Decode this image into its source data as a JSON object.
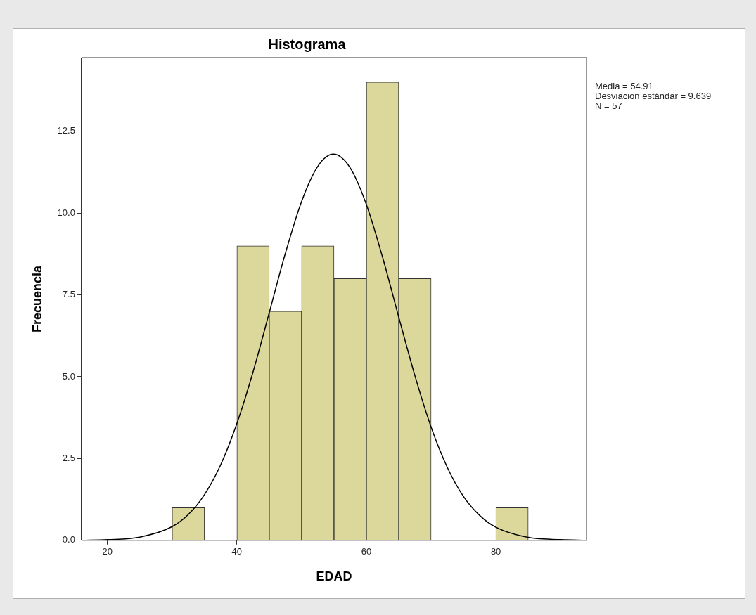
{
  "chart_data": {
    "type": "histogram",
    "title": "Histograma",
    "xlabel": "EDAD",
    "ylabel": "Frecuencia",
    "bins": [
      30,
      35,
      40,
      45,
      50,
      55,
      60,
      65,
      70,
      75,
      80,
      85
    ],
    "values": [
      1,
      0,
      9,
      7,
      9,
      8,
      14,
      8,
      0,
      0,
      1
    ],
    "color": "#dcd89c",
    "series": [
      {
        "type": "line",
        "color": "#000000",
        "x": [
          16,
          20,
          25,
          30,
          32.5,
          35,
          37.5,
          40,
          42.5,
          45,
          47.5,
          50,
          52.5,
          54.91,
          57.5,
          60,
          62.5,
          65,
          67.5,
          70,
          72.5,
          75,
          77.5,
          80,
          85,
          90,
          94
        ],
        "values": [
          0,
          0.02,
          0.1,
          0.42,
          0.79,
          1.4,
          2.31,
          3.57,
          5.15,
          6.96,
          8.78,
          10.36,
          11.43,
          11.8,
          11.38,
          10.26,
          8.65,
          6.82,
          5.03,
          3.46,
          2.23,
          1.34,
          0.76,
          0.4,
          0.09,
          0.02,
          0
        ]
      }
    ],
    "xlim": [
      16,
      94
    ],
    "xticks": [
      20,
      40,
      60,
      80
    ],
    "ylim": [
      0,
      14.75
    ],
    "yticks": [
      {
        "value": 0,
        "label": "0.0"
      },
      {
        "value": 2.5,
        "label": "2.5"
      },
      {
        "value": 5,
        "label": "5.0"
      },
      {
        "value": 7.5,
        "label": "7.5"
      },
      {
        "value": 10,
        "label": "10.0"
      },
      {
        "value": 12.5,
        "label": "12.5"
      }
    ],
    "annotations": [
      "Media = 54.91",
      "Desviación estándar = 9.639",
      "N = 57"
    ]
  }
}
